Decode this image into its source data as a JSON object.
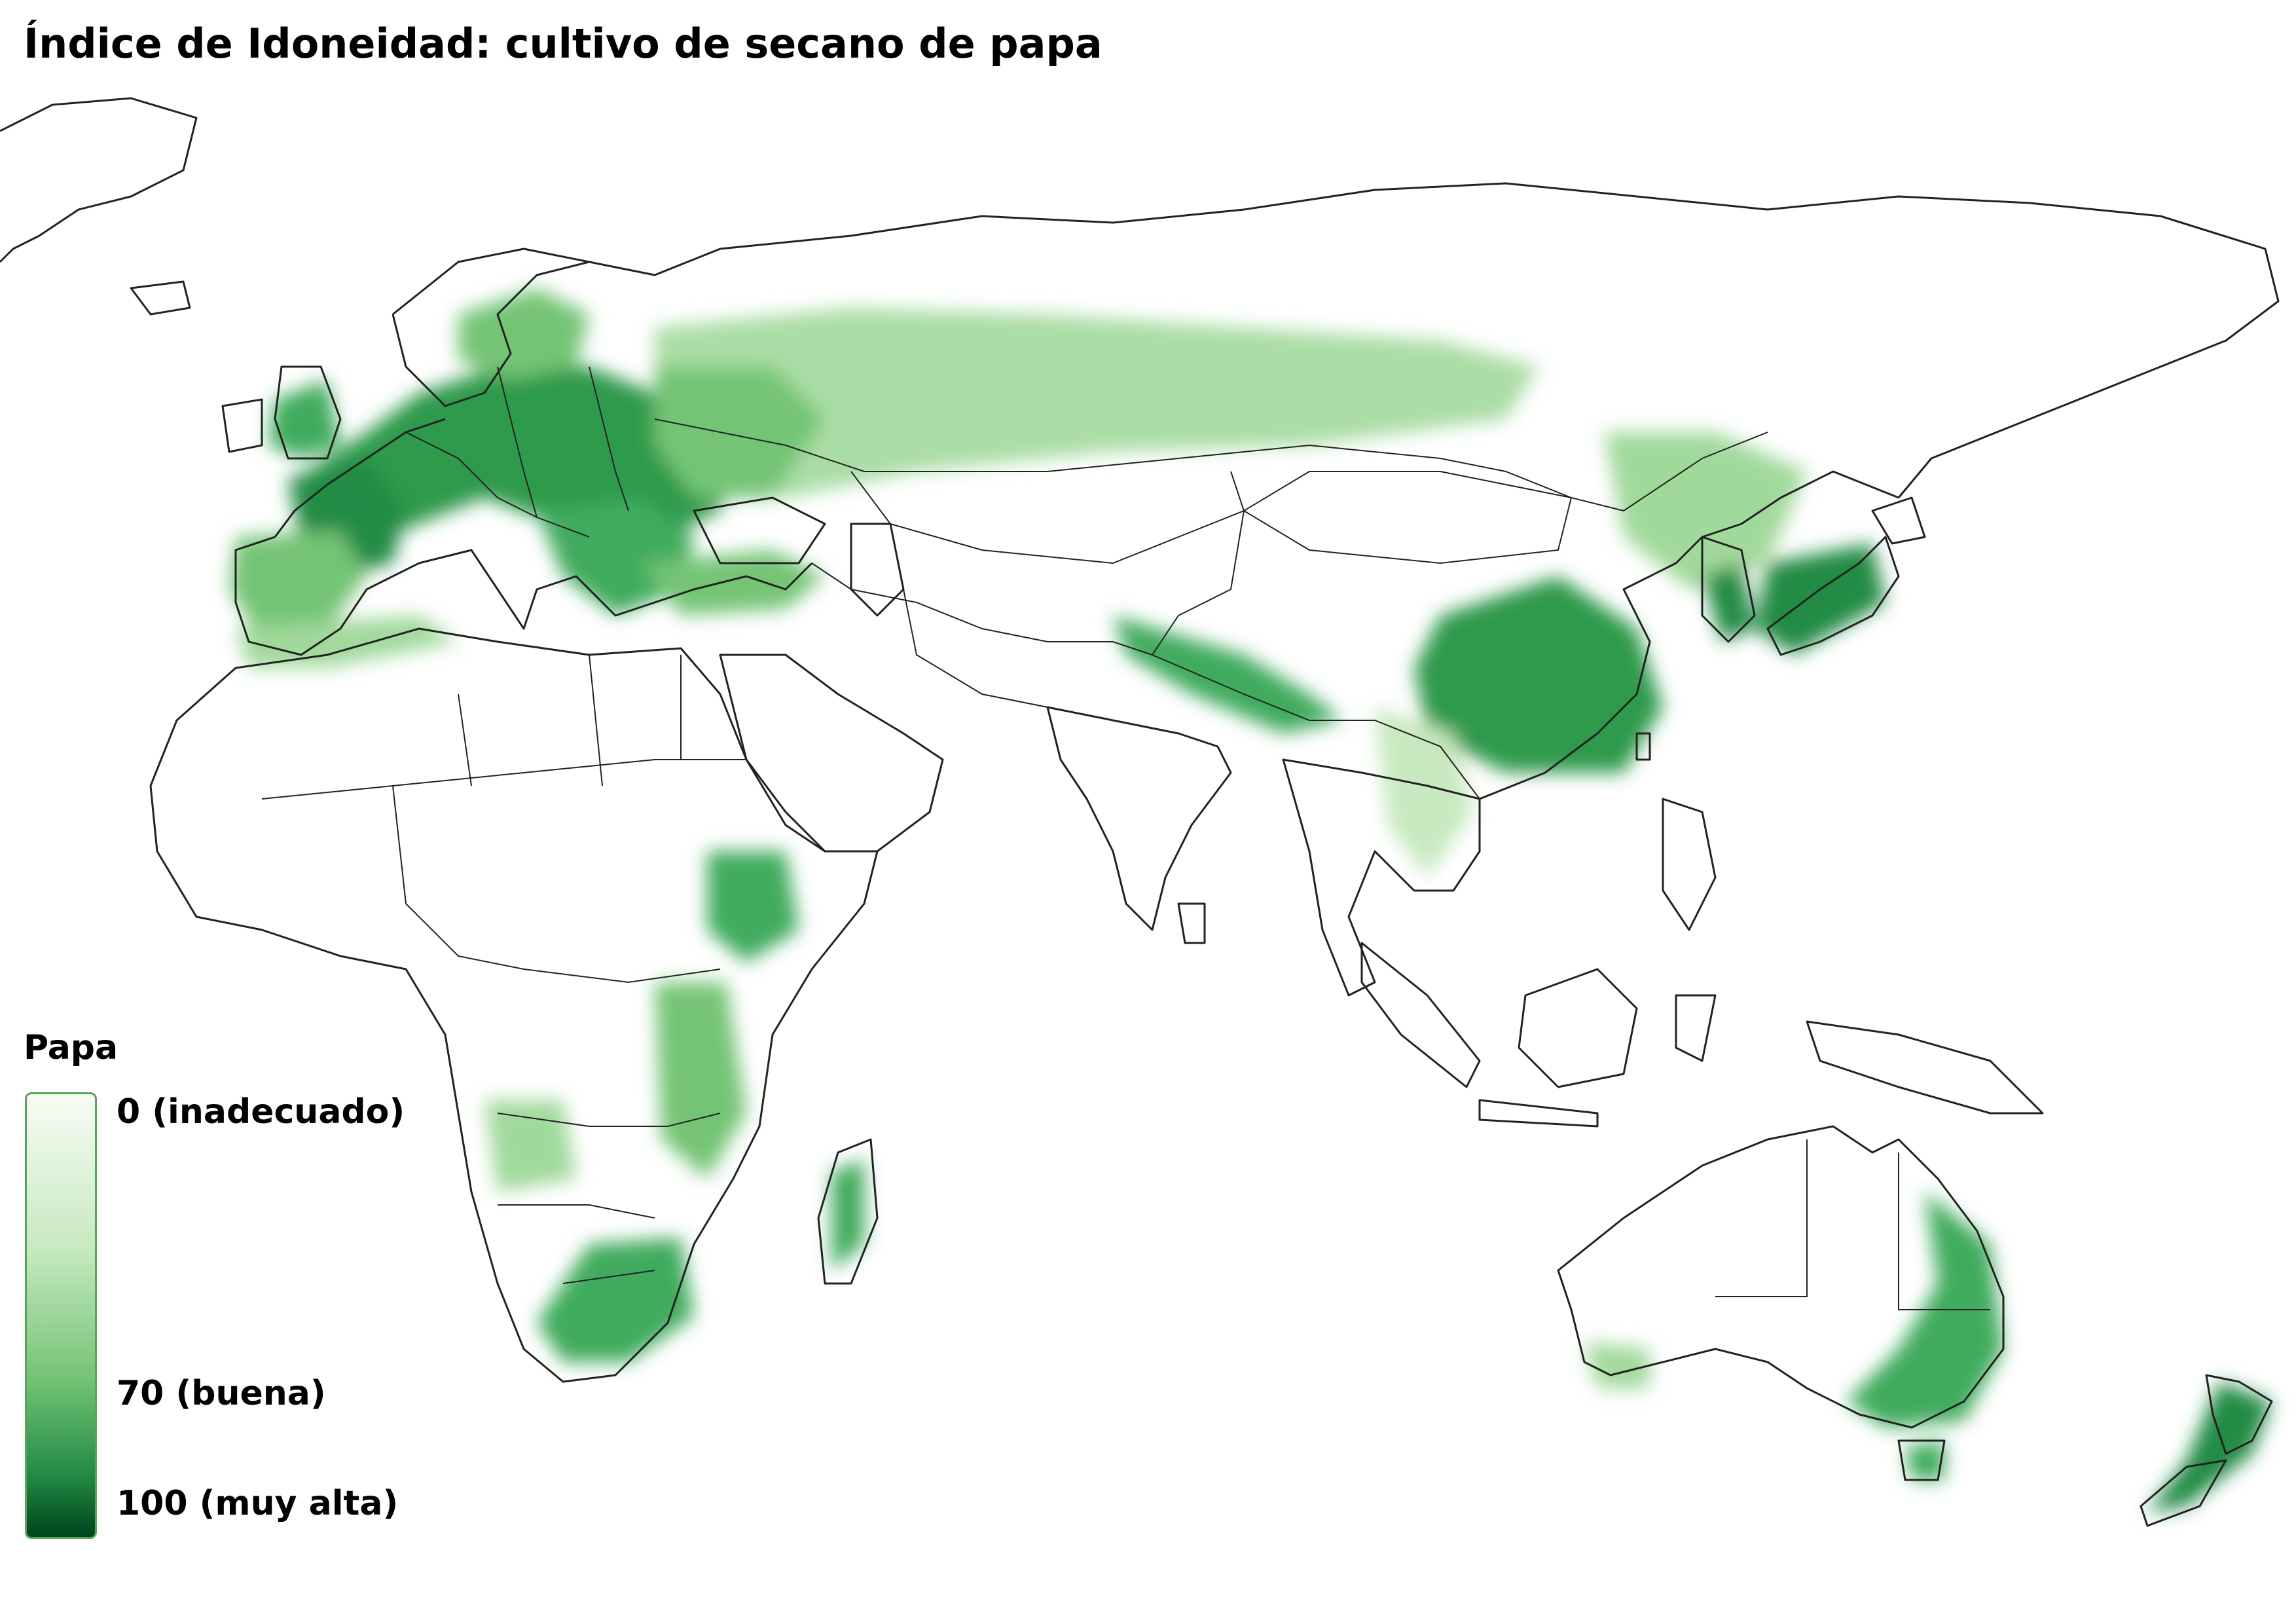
{
  "title": "Índice de Idoneidad: cultivo de secano de papa",
  "legend": {
    "title": "Papa",
    "labels": [
      "0 (inadecuado)",
      "70 (buena)",
      "100 (muy alta)"
    ],
    "values": [
      0,
      70,
      100
    ],
    "colors": [
      "#f7fcf5",
      "#238b45",
      "#00441b"
    ]
  },
  "colors": {
    "border": "#222222",
    "land": "#ffffff",
    "light_green": "#c7e9c0",
    "mid_green": "#74c476",
    "dark_green": "#238b45"
  }
}
